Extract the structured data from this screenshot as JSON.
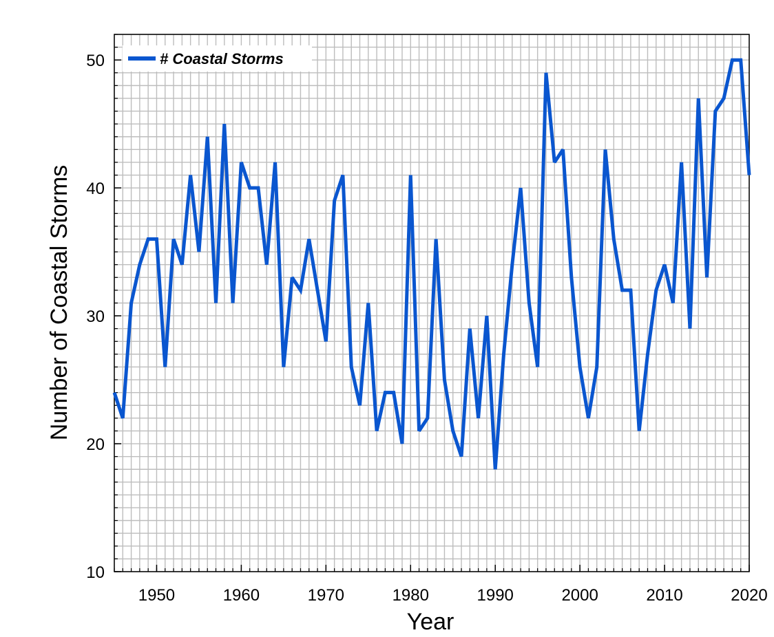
{
  "chart_data": {
    "type": "line",
    "xlabel": "Year",
    "ylabel": "Number of Coastal Storms",
    "xlim": [
      1945,
      2020
    ],
    "ylim": [
      10,
      52
    ],
    "x_ticks": [
      "1950",
      "1960",
      "1970",
      "1980",
      "1990",
      "2000",
      "2010",
      "2020"
    ],
    "y_ticks": [
      "10",
      "20",
      "30",
      "40",
      "50"
    ],
    "grid": true,
    "legend_position": "top-left",
    "color": "#0a56cf",
    "series": [
      {
        "name": "# Coastal Storms",
        "x": [
          1945,
          1946,
          1947,
          1948,
          1949,
          1950,
          1951,
          1952,
          1953,
          1954,
          1955,
          1956,
          1957,
          1958,
          1959,
          1960,
          1961,
          1962,
          1963,
          1964,
          1965,
          1966,
          1967,
          1968,
          1969,
          1970,
          1971,
          1972,
          1973,
          1974,
          1975,
          1976,
          1977,
          1978,
          1979,
          1980,
          1981,
          1982,
          1983,
          1984,
          1985,
          1986,
          1987,
          1988,
          1989,
          1990,
          1991,
          1992,
          1993,
          1994,
          1995,
          1996,
          1997,
          1998,
          1999,
          2000,
          2001,
          2002,
          2003,
          2004,
          2005,
          2006,
          2007,
          2008,
          2009,
          2010,
          2011,
          2012,
          2013,
          2014,
          2015,
          2016,
          2017,
          2018,
          2019,
          2020
        ],
        "values": [
          24,
          22,
          31,
          34,
          36,
          36,
          26,
          36,
          34,
          41,
          35,
          44,
          31,
          45,
          31,
          42,
          40,
          40,
          34,
          42,
          26,
          33,
          32,
          36,
          32,
          28,
          39,
          41,
          26,
          23,
          31,
          21,
          24,
          24,
          20,
          41,
          21,
          22,
          36,
          25,
          21,
          19,
          29,
          22,
          30,
          18,
          27,
          34,
          40,
          31,
          26,
          49,
          42,
          43,
          33,
          26,
          22,
          26,
          43,
          36,
          32,
          32,
          21,
          27,
          32,
          34,
          31,
          42,
          29,
          47,
          33,
          46,
          47,
          50,
          50,
          41
        ]
      }
    ]
  }
}
